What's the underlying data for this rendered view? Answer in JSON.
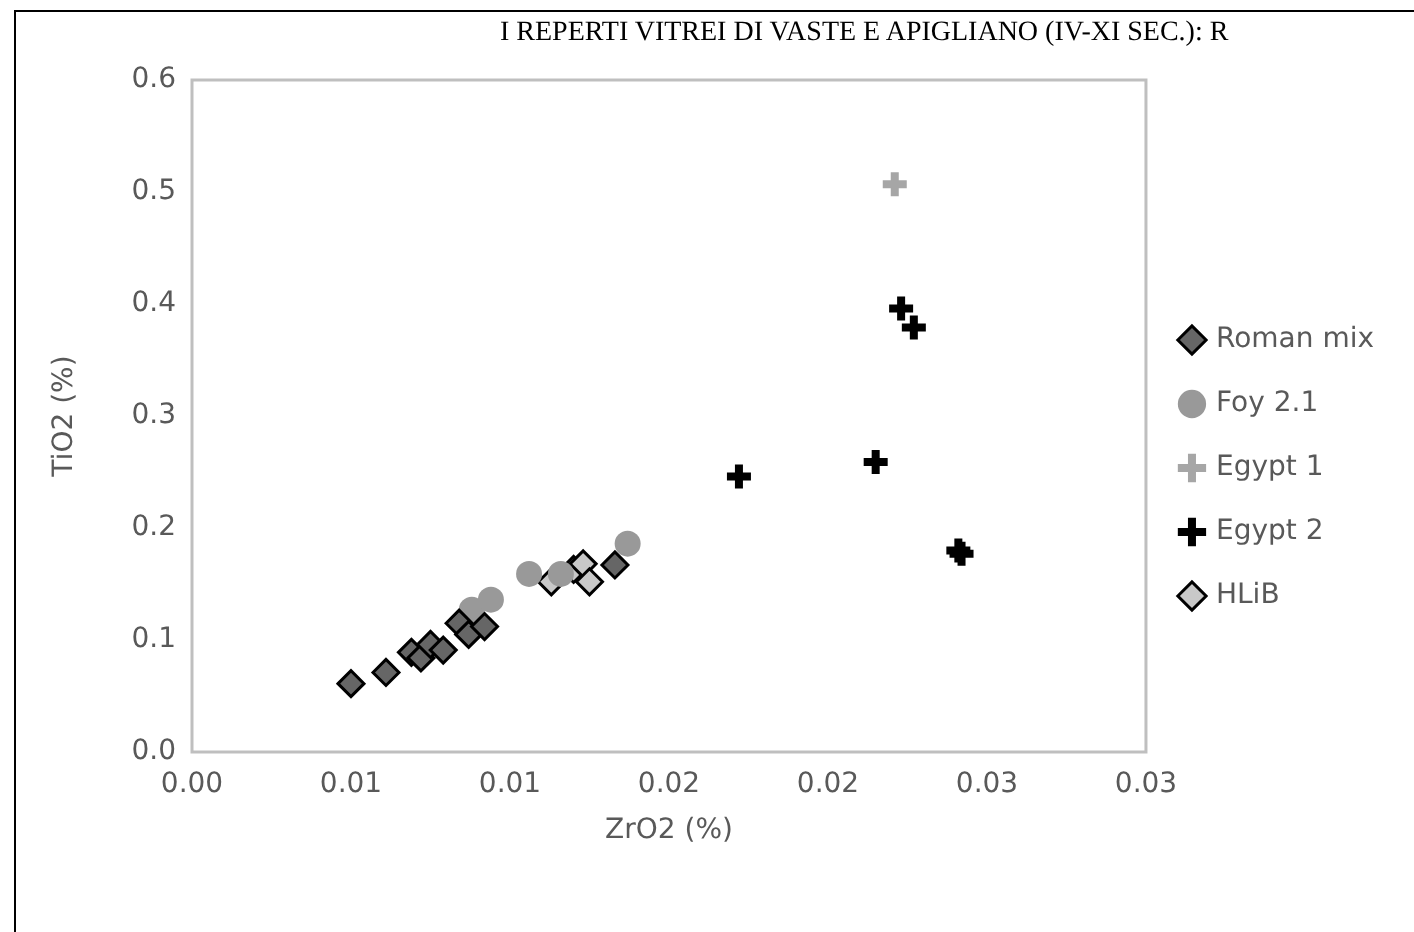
{
  "chart_data": {
    "type": "scatter",
    "title": "I REPERTI VITREI DI VASTE E APIGLIANO (IV-XI SEC.): R",
    "xlabel": "ZrO2 (%)",
    "ylabel": "TiO2 (%)",
    "legend": "right",
    "grid": false,
    "xlim": [
      0,
      0.03
    ],
    "xticks": [
      {
        "value": 0,
        "label": "0.00"
      },
      {
        "value": 0.005,
        "label": "0.01"
      },
      {
        "value": 0.01,
        "label": "0.01"
      },
      {
        "value": 0.015,
        "label": "0.02"
      },
      {
        "value": 0.02,
        "label": "0.02"
      },
      {
        "value": 0.025,
        "label": "0.03"
      },
      {
        "value": 0.03,
        "label": "0.03"
      }
    ],
    "ylim": [
      0,
      0.6
    ],
    "yticks": [
      {
        "value": 0,
        "label": "0.0"
      },
      {
        "value": 0.1,
        "label": "0.1"
      },
      {
        "value": 0.2,
        "label": "0.2"
      },
      {
        "value": 0.3,
        "label": "0.3"
      },
      {
        "value": 0.4,
        "label": "0.4"
      },
      {
        "value": 0.5,
        "label": "0.5"
      },
      {
        "value": 0.6,
        "label": "0.6"
      }
    ],
    "series": [
      {
        "name": "Roman mix",
        "color": "#666666",
        "marker": "diamond",
        "x": [
          0.005,
          0.0061,
          0.0069,
          0.0072,
          0.0075,
          0.0079,
          0.0084,
          0.0087,
          0.0092,
          0.0133
        ],
        "values": [
          0.061,
          0.071,
          0.089,
          0.084,
          0.096,
          0.091,
          0.115,
          0.105,
          0.112,
          0.167
        ]
      },
      {
        "name": "Foy 2.1",
        "color": "#999999",
        "marker": "circle",
        "x": [
          0.0088,
          0.0094,
          0.0106,
          0.0116,
          0.0137
        ],
        "values": [
          0.127,
          0.136,
          0.159,
          0.159,
          0.186
        ]
      },
      {
        "name": "Egypt 1",
        "color": "#a6a6a6",
        "marker": "cross",
        "x": [
          0.0221
        ],
        "values": [
          0.507
        ]
      },
      {
        "name": "Egypt 2",
        "color": "#000000",
        "marker": "cross",
        "x": [
          0.0172,
          0.0215,
          0.0223,
          0.0227,
          0.0242,
          0.0241
        ],
        "values": [
          0.246,
          0.259,
          0.396,
          0.379,
          0.177,
          0.18
        ]
      },
      {
        "name": "HLiB",
        "color": "#c8c8c8",
        "marker": "diamond",
        "x": [
          0.0113,
          0.012,
          0.0123,
          0.0125
        ],
        "values": [
          0.152,
          0.163,
          0.168,
          0.152
        ]
      }
    ]
  }
}
